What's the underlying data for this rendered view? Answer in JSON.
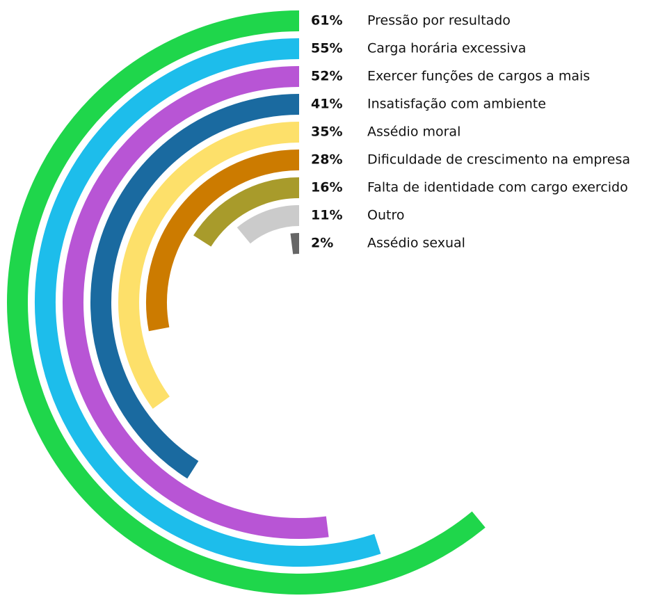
{
  "chart_data": {
    "type": "radial_bar",
    "categories": [
      "Pressão por resultado",
      "Carga horária excessiva",
      "Exercer funções de cargos a mais",
      "Insatisfação com ambiente",
      "Assédio moral",
      "Dificuldade de crescimento na empresa",
      "Falta de identidade com cargo exercido",
      "Outro",
      "Assédio sexual"
    ],
    "values": [
      61,
      55,
      52,
      41,
      35,
      28,
      16,
      11,
      2
    ],
    "value_labels": [
      "61%",
      "55%",
      "52%",
      "41%",
      "35%",
      "28%",
      "16%",
      "11%",
      "2%"
    ],
    "colors": [
      "#1fd64b",
      "#1dbdeb",
      "#b855d5",
      "#1a6aa0",
      "#fde06a",
      "#cc7b00",
      "#a89b2b",
      "#cbcbcb",
      "#666666"
    ],
    "ylim": [
      0,
      100
    ]
  }
}
